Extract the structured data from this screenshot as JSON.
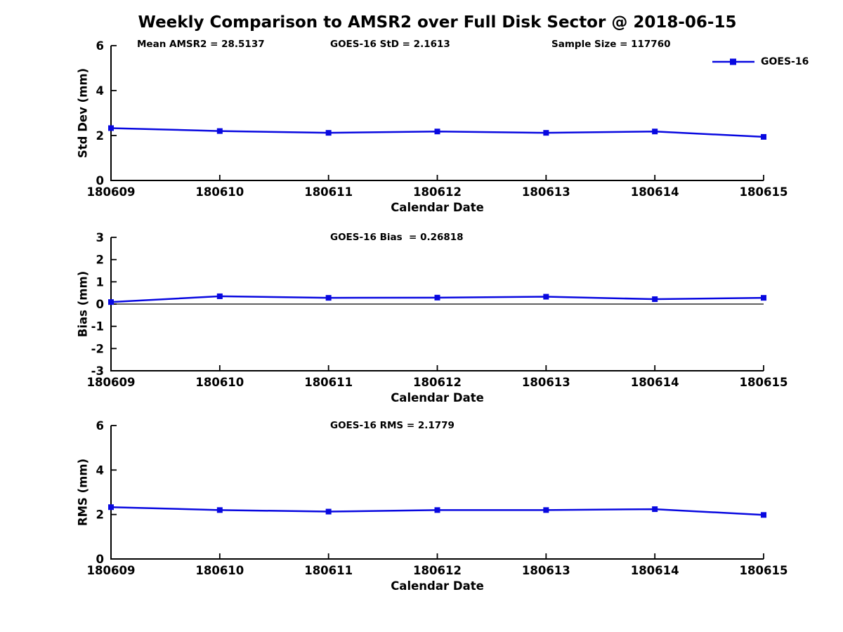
{
  "title": "Weekly Comparison to AMSR2 over Full Disk Sector @ 2018-06-15",
  "x_axis_label": "Calendar Date",
  "legend": {
    "label": "GOES-16",
    "position": "top-right"
  },
  "colors": {
    "series": "#0808e0",
    "axis": "#000000",
    "zero_line": "#000000",
    "background": "#ffffff",
    "text": "#000000"
  },
  "chart_data": [
    {
      "id": "stddev",
      "type": "line",
      "title": "Weekly Comparison to AMSR2 over Full Disk Sector @ 2018-06-15",
      "annotations": [
        "Mean AMSR2 = 28.5137",
        "GOES-16 StD = 2.1613",
        "Sample Size = 117760"
      ],
      "xlabel": "Calendar Date",
      "ylabel": "Std Dev (mm)",
      "categories": [
        "180609",
        "180610",
        "180611",
        "180612",
        "180613",
        "180614",
        "180615"
      ],
      "series": [
        {
          "name": "GOES-16",
          "values": [
            2.33,
            2.2,
            2.12,
            2.18,
            2.12,
            2.18,
            1.94
          ]
        }
      ],
      "ylim": [
        0,
        6
      ],
      "yticks": [
        0,
        2,
        4,
        6
      ],
      "grid": false,
      "legend_entry": "GOES-16"
    },
    {
      "id": "bias",
      "type": "line",
      "annotations": [
        "GOES-16 Bias  = 0.26818"
      ],
      "xlabel": "Calendar Date",
      "ylabel": "Bias (mm)",
      "categories": [
        "180609",
        "180610",
        "180611",
        "180612",
        "180613",
        "180614",
        "180615"
      ],
      "series": [
        {
          "name": "GOES-16",
          "values": [
            0.09,
            0.35,
            0.28,
            0.29,
            0.33,
            0.22,
            0.28
          ]
        }
      ],
      "ylim": [
        -3,
        3
      ],
      "yticks": [
        -3,
        -2,
        -1,
        0,
        1,
        2,
        3
      ],
      "zero_line": true,
      "grid": false
    },
    {
      "id": "rms",
      "type": "line",
      "annotations": [
        "GOES-16 RMS = 2.1779"
      ],
      "xlabel": "Calendar Date",
      "ylabel": "RMS (mm)",
      "categories": [
        "180609",
        "180610",
        "180611",
        "180612",
        "180613",
        "180614",
        "180615"
      ],
      "series": [
        {
          "name": "GOES-16",
          "values": [
            2.33,
            2.2,
            2.13,
            2.2,
            2.2,
            2.24,
            1.98
          ]
        }
      ],
      "ylim": [
        0,
        6
      ],
      "yticks": [
        0,
        2,
        4,
        6
      ],
      "grid": false
    }
  ]
}
